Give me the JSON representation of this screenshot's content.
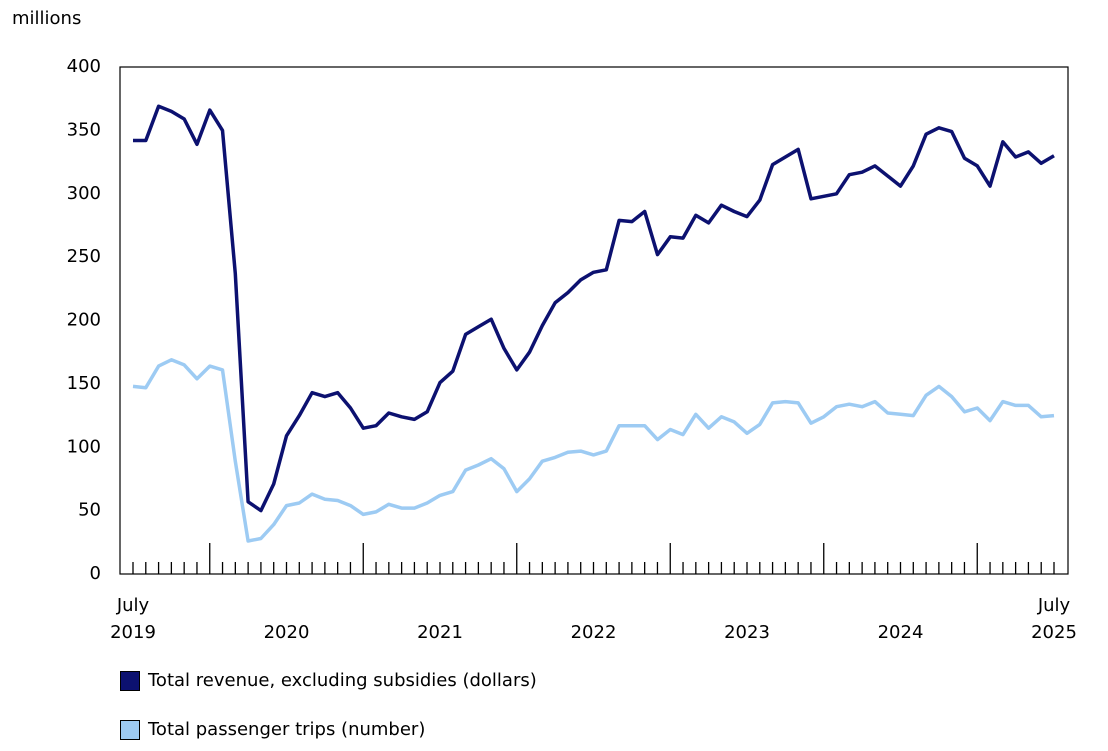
{
  "chart_data": {
    "type": "line",
    "y_label": "millions",
    "categories": [
      "July 2019",
      null,
      null,
      null,
      null,
      null,
      null,
      null,
      null,
      null,
      null,
      null,
      "2020",
      null,
      null,
      null,
      null,
      null,
      null,
      null,
      null,
      null,
      null,
      null,
      "2021",
      null,
      null,
      null,
      null,
      null,
      null,
      null,
      null,
      null,
      null,
      null,
      "2022",
      null,
      null,
      null,
      null,
      null,
      null,
      null,
      null,
      null,
      null,
      null,
      "2023",
      null,
      null,
      null,
      null,
      null,
      null,
      null,
      null,
      null,
      null,
      null,
      "2024",
      null,
      null,
      null,
      null,
      null,
      null,
      null,
      null,
      null,
      null,
      null,
      "July 2025"
    ],
    "series": [
      {
        "name": "Total revenue, excluding subsidies (dollars)",
        "color": "#0c1170",
        "values": [
          342,
          342,
          369,
          365,
          359,
          339,
          366,
          350,
          237,
          57,
          50,
          71,
          109,
          125,
          143,
          140,
          143,
          131,
          115,
          117,
          127,
          124,
          122,
          128,
          151,
          160,
          189,
          195,
          201,
          178,
          161,
          175,
          196,
          214,
          222,
          232,
          238,
          240,
          279,
          278,
          286,
          252,
          266,
          265,
          283,
          277,
          291,
          286,
          282,
          295,
          323,
          329,
          335,
          296,
          298,
          300,
          315,
          317,
          322,
          314,
          306,
          322,
          347,
          352,
          349,
          328,
          322,
          306,
          341,
          329,
          333,
          324,
          330
        ]
      },
      {
        "name": "Total passenger trips (number)",
        "color": "#9dcbf3",
        "values": [
          148,
          147,
          164,
          169,
          165,
          154,
          164,
          161,
          89,
          26,
          28,
          39,
          54,
          56,
          63,
          59,
          58,
          54,
          47,
          49,
          55,
          52,
          52,
          56,
          62,
          65,
          82,
          86,
          91,
          83,
          65,
          75,
          89,
          92,
          96,
          97,
          94,
          97,
          117,
          117,
          117,
          106,
          114,
          110,
          126,
          115,
          124,
          120,
          111,
          118,
          135,
          136,
          135,
          119,
          124,
          132,
          134,
          132,
          136,
          127,
          126,
          125,
          141,
          148,
          140,
          128,
          131,
          121,
          136,
          133,
          133,
          124,
          125
        ]
      }
    ],
    "ylim": [
      0,
      400
    ],
    "yticks": [
      0,
      50,
      100,
      150,
      200,
      250,
      300,
      350,
      400
    ],
    "grid": false
  }
}
